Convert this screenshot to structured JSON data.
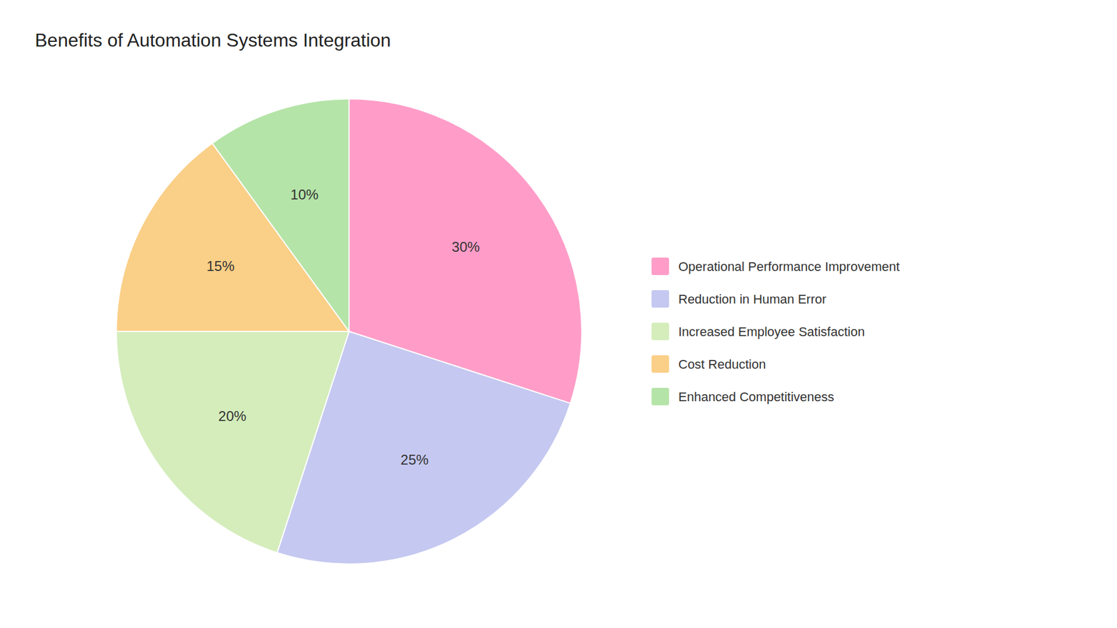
{
  "chart_data": {
    "type": "pie",
    "title": "Benefits of Automation Systems Integration",
    "categories": [
      "Operational Performance Improvement",
      "Reduction in Human Error",
      "Increased Employee Satisfaction",
      "Cost Reduction",
      "Enhanced Competitiveness"
    ],
    "values": [
      30,
      25,
      20,
      15,
      10
    ],
    "value_labels": [
      "30%",
      "25%",
      "20%",
      "15%",
      "10%"
    ],
    "colors": [
      "#FF9DC8",
      "#C5C8F0",
      "#D4EDBB",
      "#FACF87",
      "#B5E4A8"
    ],
    "data_labels": true,
    "legend": "right"
  }
}
